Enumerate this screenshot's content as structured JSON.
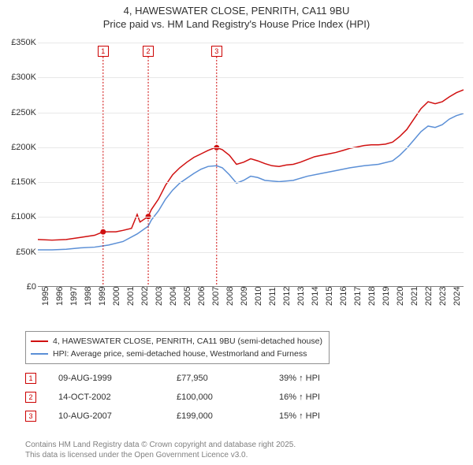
{
  "title": {
    "line1": "4, HAWESWATER CLOSE, PENRITH, CA11 9BU",
    "line2": "Price paid vs. HM Land Registry's House Price Index (HPI)"
  },
  "chart": {
    "type": "line",
    "background_color": "#ffffff",
    "grid_color": "#e8e8e8",
    "axis_color": "#808080",
    "text_color": "#303030",
    "x": {
      "min": 1995,
      "max": 2025,
      "ticks": [
        1995,
        1996,
        1997,
        1998,
        1999,
        2000,
        2001,
        2002,
        2003,
        2004,
        2005,
        2006,
        2007,
        2008,
        2009,
        2010,
        2011,
        2012,
        2013,
        2014,
        2015,
        2016,
        2017,
        2018,
        2019,
        2020,
        2021,
        2022,
        2023,
        2024
      ]
    },
    "y": {
      "min": 0,
      "max": 350000,
      "step": 50000,
      "tick_labels": [
        "£0",
        "£50K",
        "£100K",
        "£150K",
        "£200K",
        "£250K",
        "£300K",
        "£350K"
      ]
    },
    "series": [
      {
        "key": "property",
        "label": "4, HAWESWATER CLOSE, PENRITH, CA11 9BU (semi-detached house)",
        "color": "#d01010",
        "width": 1.6,
        "points": [
          [
            1995.0,
            67000
          ],
          [
            1996.0,
            66000
          ],
          [
            1997.0,
            67000
          ],
          [
            1998.0,
            70000
          ],
          [
            1999.0,
            73000
          ],
          [
            1999.6,
            77950
          ],
          [
            2000.0,
            78000
          ],
          [
            2000.5,
            78000
          ],
          [
            2001.0,
            80000
          ],
          [
            2001.6,
            83000
          ],
          [
            2002.0,
            103000
          ],
          [
            2002.2,
            92000
          ],
          [
            2002.78,
            100000
          ],
          [
            2003.0,
            110000
          ],
          [
            2003.5,
            125000
          ],
          [
            2004.0,
            145000
          ],
          [
            2004.5,
            160000
          ],
          [
            2005.0,
            170000
          ],
          [
            2005.5,
            178000
          ],
          [
            2006.0,
            185000
          ],
          [
            2006.5,
            190000
          ],
          [
            2007.0,
            195000
          ],
          [
            2007.5,
            199000
          ],
          [
            2007.6,
            199000
          ],
          [
            2008.0,
            196000
          ],
          [
            2008.5,
            188000
          ],
          [
            2009.0,
            175000
          ],
          [
            2009.5,
            178000
          ],
          [
            2010.0,
            183000
          ],
          [
            2010.5,
            180000
          ],
          [
            2011.0,
            176000
          ],
          [
            2011.5,
            173000
          ],
          [
            2012.0,
            172000
          ],
          [
            2012.5,
            174000
          ],
          [
            2013.0,
            175000
          ],
          [
            2013.5,
            178000
          ],
          [
            2014.0,
            182000
          ],
          [
            2014.5,
            186000
          ],
          [
            2015.0,
            188000
          ],
          [
            2015.5,
            190000
          ],
          [
            2016.0,
            192000
          ],
          [
            2016.5,
            195000
          ],
          [
            2017.0,
            198000
          ],
          [
            2017.5,
            200000
          ],
          [
            2018.0,
            202000
          ],
          [
            2018.5,
            203000
          ],
          [
            2019.0,
            203000
          ],
          [
            2019.5,
            204000
          ],
          [
            2020.0,
            207000
          ],
          [
            2020.5,
            215000
          ],
          [
            2021.0,
            225000
          ],
          [
            2021.5,
            240000
          ],
          [
            2022.0,
            255000
          ],
          [
            2022.5,
            265000
          ],
          [
            2023.0,
            262000
          ],
          [
            2023.5,
            265000
          ],
          [
            2024.0,
            272000
          ],
          [
            2024.5,
            278000
          ],
          [
            2025.0,
            282000
          ]
        ]
      },
      {
        "key": "hpi",
        "label": "HPI: Average price, semi-detached house, Westmorland and Furness",
        "color": "#5b8fd6",
        "width": 1.4,
        "points": [
          [
            1995.0,
            52000
          ],
          [
            1996.0,
            52000
          ],
          [
            1997.0,
            53000
          ],
          [
            1998.0,
            55000
          ],
          [
            1999.0,
            56000
          ],
          [
            2000.0,
            59000
          ],
          [
            2001.0,
            64000
          ],
          [
            2002.0,
            75000
          ],
          [
            2002.78,
            86000
          ],
          [
            2003.0,
            95000
          ],
          [
            2003.5,
            108000
          ],
          [
            2004.0,
            125000
          ],
          [
            2004.5,
            138000
          ],
          [
            2005.0,
            148000
          ],
          [
            2005.5,
            155000
          ],
          [
            2006.0,
            162000
          ],
          [
            2006.5,
            168000
          ],
          [
            2007.0,
            172000
          ],
          [
            2007.6,
            173000
          ],
          [
            2008.0,
            170000
          ],
          [
            2008.5,
            160000
          ],
          [
            2009.0,
            148000
          ],
          [
            2009.5,
            152000
          ],
          [
            2010.0,
            158000
          ],
          [
            2010.5,
            156000
          ],
          [
            2011.0,
            152000
          ],
          [
            2012.0,
            150000
          ],
          [
            2013.0,
            152000
          ],
          [
            2014.0,
            158000
          ],
          [
            2015.0,
            162000
          ],
          [
            2016.0,
            166000
          ],
          [
            2017.0,
            170000
          ],
          [
            2018.0,
            173000
          ],
          [
            2019.0,
            175000
          ],
          [
            2020.0,
            180000
          ],
          [
            2020.5,
            188000
          ],
          [
            2021.0,
            198000
          ],
          [
            2021.5,
            210000
          ],
          [
            2022.0,
            222000
          ],
          [
            2022.5,
            230000
          ],
          [
            2023.0,
            228000
          ],
          [
            2023.5,
            232000
          ],
          [
            2024.0,
            240000
          ],
          [
            2024.5,
            245000
          ],
          [
            2025.0,
            248000
          ]
        ]
      }
    ],
    "markers": [
      {
        "n": "1",
        "x": 1999.6,
        "y": 77950
      },
      {
        "n": "2",
        "x": 2002.78,
        "y": 100000
      },
      {
        "n": "3",
        "x": 2007.6,
        "y": 199000
      }
    ],
    "marker_style": {
      "dot_radius": 3.5,
      "box_border": "#cc0000",
      "vline_color": "#cc0000"
    }
  },
  "legend": {
    "border_color": "#909090",
    "items": [
      {
        "color": "#d01010",
        "label": "4, HAWESWATER CLOSE, PENRITH, CA11 9BU (semi-detached house)"
      },
      {
        "color": "#5b8fd6",
        "label": "HPI: Average price, semi-detached house, Westmorland and Furness"
      }
    ]
  },
  "sales": [
    {
      "n": "1",
      "date": "09-AUG-1999",
      "price": "£77,950",
      "diff": "39% ↑ HPI"
    },
    {
      "n": "2",
      "date": "14-OCT-2002",
      "price": "£100,000",
      "diff": "16% ↑ HPI"
    },
    {
      "n": "3",
      "date": "10-AUG-2007",
      "price": "£199,000",
      "diff": "15% ↑ HPI"
    }
  ],
  "footer": {
    "line1": "Contains HM Land Registry data © Crown copyright and database right 2025.",
    "line2": "This data is licensed under the Open Government Licence v3.0."
  }
}
